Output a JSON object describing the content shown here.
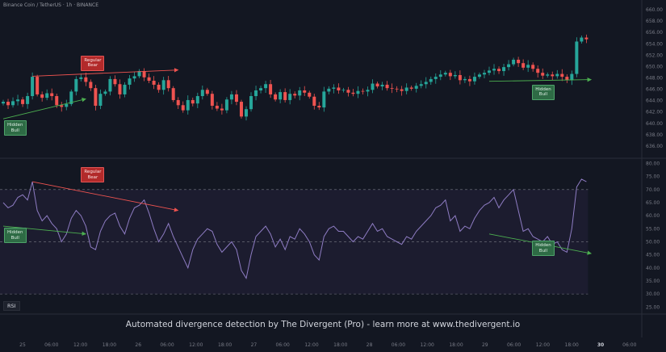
{
  "header": {
    "symbol": "Binance Coin / TetherUS · 1h · BINANCE"
  },
  "footer": {
    "caption": "Automated divergence detection by The Divergent (Pro) - learn more at www.thedivergent.io"
  },
  "indicator": {
    "label": "RSI"
  },
  "colors": {
    "background": "#131722",
    "up": "#26a69a",
    "down": "#ef5350",
    "rsi_line": "#8e7cc3",
    "bull": "#4caf50",
    "bear": "#ef5350"
  },
  "chart_data": [
    {
      "type": "candlestick",
      "ylim": [
        635,
        661
      ],
      "y_ticks": [
        "660.00",
        "658.00",
        "656.00",
        "654.00",
        "652.00",
        "650.00",
        "648.00",
        "646.00",
        "644.00",
        "642.00",
        "640.00",
        "638.00",
        "636.00"
      ],
      "x_ticks": [
        "25",
        "06:00",
        "12:00",
        "18:00",
        "26",
        "06:00",
        "12:00",
        "18:00",
        "27",
        "06:00",
        "12:00",
        "18:00",
        "28",
        "06:00",
        "12:00",
        "18:00",
        "29",
        "06:00",
        "12:00",
        "18:00",
        "30",
        "06:00"
      ],
      "close": [
        643.8,
        643.2,
        643.9,
        644.2,
        643.4,
        644.8,
        648.2,
        645.1,
        644.5,
        645.3,
        644.8,
        643.2,
        642.9,
        643.4,
        645.6,
        647.8,
        648.1,
        647.3,
        646.2,
        643.1,
        645.2,
        645.6,
        647.8,
        646.9,
        645.1,
        646.8,
        647.9,
        648.3,
        649.2,
        648.1,
        647.5,
        646.8,
        645.9,
        647.6,
        646.2,
        644.1,
        643.2,
        642.3,
        644.1,
        643.5,
        644.8,
        645.9,
        645.2,
        643.1,
        642.6,
        642.3,
        644.2,
        645.1,
        643.8,
        641.2,
        642.5,
        644.8,
        645.8,
        646.2,
        646.9,
        645.1,
        644.2,
        645.5,
        644.1,
        645.2,
        644.9,
        645.8,
        645.4,
        644.7,
        643.1,
        642.8,
        645.6,
        646.1,
        646.3,
        645.8,
        645.9,
        645.4,
        645.2,
        645.7,
        645.6,
        645.9,
        647.0,
        646.5,
        646.8,
        646.2,
        646.1,
        646.0,
        645.7,
        646.3,
        646.1,
        646.6,
        646.9,
        647.3,
        647.8,
        648.2,
        648.6,
        648.9,
        648.3,
        648.5,
        647.6,
        647.8,
        647.4,
        648.2,
        648.6,
        648.9,
        649.3,
        649.6,
        649.2,
        649.9,
        650.4,
        651.2,
        650.6,
        649.8,
        650.3,
        649.6,
        648.9,
        648.4,
        648.6,
        648.3,
        648.7,
        648.2,
        647.6,
        648.7,
        654.4,
        655.1,
        654.8
      ],
      "indicator": {
        "name": "RSI",
        "ylim": [
          22,
          82
        ],
        "y_ticks": [
          "80.00",
          "75.00",
          "70.00",
          "65.00",
          "60.00",
          "55.00",
          "50.00",
          "45.00",
          "40.00",
          "35.00",
          "30.00",
          "25.00"
        ],
        "band": [
          30,
          70
        ],
        "midline": 50,
        "values": [
          65,
          63,
          64,
          67,
          68,
          66,
          73,
          62,
          58,
          60,
          57,
          55,
          50,
          53,
          59,
          62,
          60,
          56,
          48,
          47,
          54,
          58,
          60,
          61,
          56,
          53,
          59,
          63,
          64,
          66,
          61,
          55,
          50,
          53,
          57,
          52,
          48,
          44,
          40,
          47,
          51,
          53,
          55,
          54,
          49,
          46,
          48,
          50,
          47,
          39,
          36,
          45,
          52,
          54,
          56,
          53,
          48,
          51,
          47,
          52,
          51,
          55,
          53,
          50,
          45,
          43,
          52,
          55,
          56,
          54,
          54,
          52,
          50,
          52,
          51,
          54,
          57,
          54,
          55,
          52,
          51,
          50,
          49,
          52,
          51,
          54,
          56,
          58,
          60,
          63,
          64,
          66,
          58,
          60,
          54,
          56,
          55,
          59,
          62,
          64,
          65,
          67,
          63,
          66,
          68,
          70,
          62,
          54,
          55,
          52,
          51,
          50,
          52,
          49,
          50,
          47,
          46,
          55,
          71,
          74,
          73
        ]
      },
      "annotations": [
        {
          "pane": "price",
          "type": "Hidden Bull",
          "label": "Hidden\nBull",
          "from_index": 0,
          "from_value": 640.8,
          "to_index": 17,
          "to_value": 644.3
        },
        {
          "pane": "price",
          "type": "Regular Bear",
          "label": "Regular\nBear",
          "from_index": 6,
          "from_value": 648.3,
          "to_index": 36,
          "to_value": 649.4
        },
        {
          "pane": "price",
          "type": "Hidden Bull",
          "label": "Hidden\nBull",
          "from_index": 100,
          "from_value": 647.4,
          "to_index": 121,
          "to_value": 647.7
        },
        {
          "pane": "indicator",
          "type": "Hidden Bull",
          "label": "Hidden\nBull",
          "from_index": 0,
          "from_value": 56,
          "to_index": 17,
          "to_value": 53
        },
        {
          "pane": "indicator",
          "type": "Regular Bear",
          "label": "Regular\nBear",
          "from_index": 6,
          "from_value": 73,
          "to_index": 36,
          "to_value": 62
        },
        {
          "pane": "indicator",
          "type": "Hidden Bull",
          "label": "Hidden\nBull",
          "from_index": 100,
          "from_value": 53,
          "to_index": 121,
          "to_value": 45.5
        }
      ]
    }
  ]
}
